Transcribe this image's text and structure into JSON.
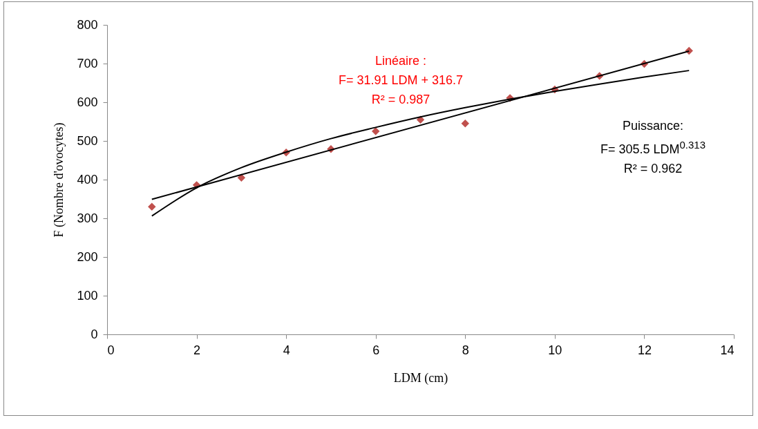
{
  "chart_data": {
    "type": "scatter",
    "xlabel": "LDM (cm)",
    "ylabel": "F (Nombre d'ovocytes)",
    "xlim": [
      0,
      14
    ],
    "ylim": [
      0,
      800
    ],
    "xticks": [
      0,
      2,
      4,
      6,
      8,
      10,
      12,
      14
    ],
    "yticks": [
      0,
      100,
      200,
      300,
      400,
      500,
      600,
      700,
      800
    ],
    "series": [
      {
        "color": "#c0504d",
        "marker": "diamond",
        "x": [
          1,
          2,
          3,
          4,
          5,
          6,
          7,
          8,
          9,
          10,
          11,
          12,
          13
        ],
        "values": [
          330,
          386,
          405,
          470,
          479,
          525,
          555,
          545,
          611,
          633,
          668,
          699,
          733
        ]
      },
      {
        "type": "line",
        "marker": "none",
        "color": "#000000",
        "x": [
          1,
          13
        ],
        "values": [
          349,
          732
        ]
      },
      {
        "type": "line",
        "marker": "none",
        "color": "#000000",
        "x": [
          1,
          2,
          3,
          4,
          5,
          6,
          7,
          8,
          9,
          10,
          11,
          12,
          13
        ],
        "values": [
          306,
          379,
          431,
          471,
          506,
          535,
          562,
          586,
          608,
          628,
          647,
          665,
          682
        ]
      }
    ],
    "annotations": [
      "Linéaire :\nF= 31.91 LDM + 316.7\nR² = 0.987",
      "Puissance:\nF= 305.5 LDM$^{0.313}$\nR² = 0.962"
    ]
  }
}
